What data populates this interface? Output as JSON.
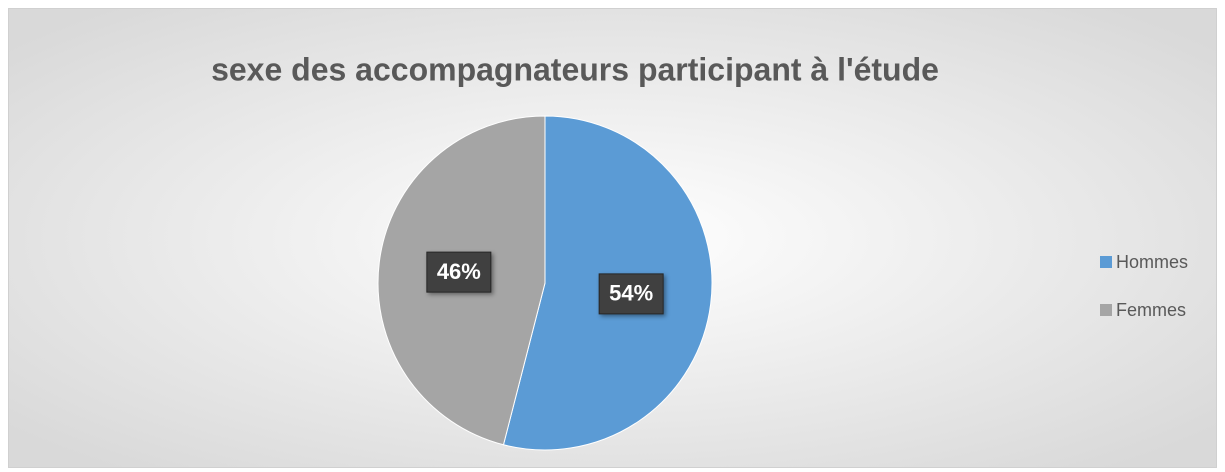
{
  "chart_data": {
    "type": "pie",
    "title": "sexe des accompagnateurs participant à l'étude",
    "categories": [
      "Hommes",
      "Femmes"
    ],
    "values": [
      54,
      46
    ],
    "value_labels": [
      "54%",
      "46%"
    ],
    "colors": [
      "#5b9bd5",
      "#a5a5a5"
    ],
    "legend": "right"
  }
}
